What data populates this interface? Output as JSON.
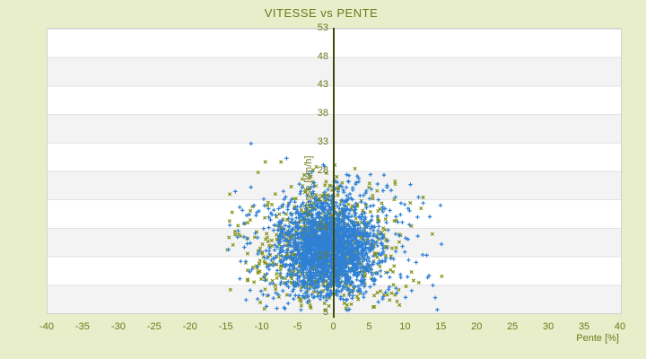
{
  "window": {
    "kind": "chart-image",
    "background_color": "#e8edca"
  },
  "colors": {
    "background": "#e8edca",
    "text_olive": "#6b7a1a",
    "axis_line": "#3f4b08",
    "band_white": "#ffffff",
    "band_gray": "#f3f3f3",
    "band_separator": "#e3e3e3",
    "plot_border": "#d2d2d2",
    "series_blue": "#2f80d5",
    "series_olive": "#7e8e0c"
  },
  "chart_data": {
    "type": "scatter",
    "title": "VITESSE vs PENTE",
    "xlabel": "Pente [%]",
    "ylabel": "Vitesse [km/h]",
    "xlim": [
      -40,
      40
    ],
    "ylim": [
      3,
      53
    ],
    "x_ticks": [
      -40,
      -35,
      -30,
      -25,
      -20,
      -15,
      -10,
      -5,
      0,
      5,
      10,
      15,
      20,
      25,
      30,
      35,
      40
    ],
    "y_ticks": [
      3,
      8,
      13,
      18,
      23,
      28,
      33,
      38,
      43,
      48,
      53
    ],
    "grid": "alternating-horizontal-bands",
    "legend": "none",
    "y_axis_position": "center-at-x-0",
    "seed": 1234,
    "series": [
      {
        "name": "cloud-olive",
        "marker": "x",
        "color": "#7e8e0c",
        "count": 780,
        "center": {
          "x": -1.3,
          "y": 14.6
        },
        "spread": {
          "core": {
            "x": 4.5,
            "y": 4.8
          },
          "tail": {
            "x": 7.5,
            "y": 7.5
          },
          "tail_fraction": 0.3
        },
        "clip": {
          "x": [
            -14.8,
            15.6
          ],
          "y": [
            3.3,
            33.6
          ]
        }
      },
      {
        "name": "cloud-blue",
        "marker": "plus",
        "color": "#2f80d5",
        "count": 2300,
        "center": {
          "x": -0.6,
          "y": 14.2
        },
        "spread": {
          "core": {
            "x": 3.2,
            "y": 4.0
          },
          "tail": {
            "x": 6.5,
            "y": 7.5
          },
          "tail_fraction": 0.2
        },
        "clip": {
          "x": [
            -14.8,
            15.6
          ],
          "y": [
            3.3,
            33.6
          ]
        }
      }
    ]
  }
}
